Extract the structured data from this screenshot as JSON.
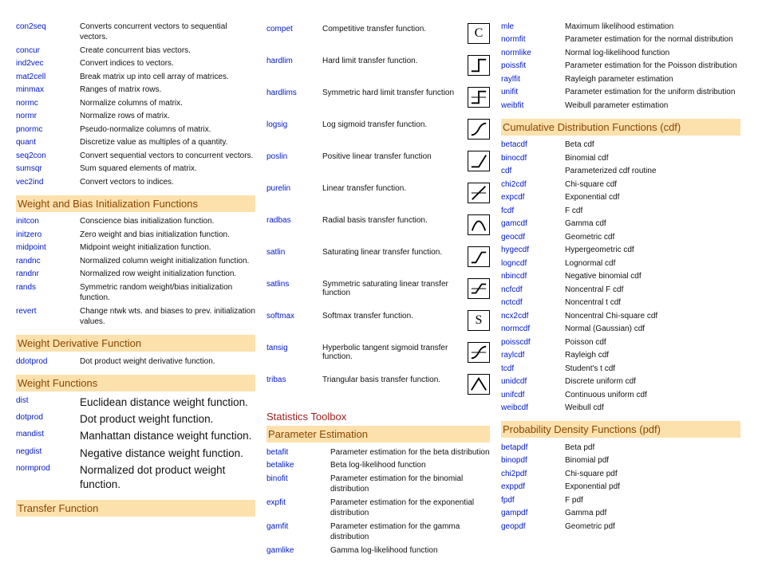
{
  "colors": {
    "link": "#0018c8",
    "section_bg": "#fce1ad",
    "section_fg": "#8b4500",
    "toolbox_fg": "#a02020",
    "text": "#111111",
    "background": "#ffffff"
  },
  "col1": {
    "top_list": [
      {
        "fn": "con2seq",
        "desc": "Converts concurrent vectors to sequential vectors."
      },
      {
        "fn": "concur",
        "desc": "Create concurrent bias vectors."
      },
      {
        "fn": "ind2vec",
        "desc": "Convert indices to vectors."
      },
      {
        "fn": "mat2cell",
        "desc": "Break matrix up into cell array of matrices."
      },
      {
        "fn": "minmax",
        "desc": "Ranges of matrix rows."
      },
      {
        "fn": "normc",
        "desc": "Normalize columns of matrix."
      },
      {
        "fn": "normr",
        "desc": "Normalize rows of matrix."
      },
      {
        "fn": "pnormc",
        "desc": "Pseudo-normalize columns of matrix."
      },
      {
        "fn": "quant",
        "desc": "Discretize value as multiples of a quantity."
      },
      {
        "fn": "seq2con",
        "desc": "Convert sequential vectors to concurrent vectors."
      },
      {
        "fn": "sumsqr",
        "desc": "Sum squared elements of matrix."
      },
      {
        "fn": "vec2ind",
        "desc": "Convert vectors to indices."
      }
    ],
    "s1_title": "Weight and Bias Initialization Functions",
    "s1_list": [
      {
        "fn": "initcon",
        "desc": "Conscience bias initialization function."
      },
      {
        "fn": "initzero",
        "desc": "Zero weight and bias initialization function."
      },
      {
        "fn": "midpoint",
        "desc": "Midpoint weight initialization function."
      },
      {
        "fn": "randnc",
        "desc": "Normalized column weight initialization function."
      },
      {
        "fn": "randnr",
        "desc": "Normalized row weight initialization function."
      },
      {
        "fn": "rands",
        "desc": "Symmetric random weight/bias initialization function."
      },
      {
        "fn": "revert",
        "desc": "Change ntwk wts. and biases to prev. initialization values."
      }
    ],
    "s2_title": "Weight Derivative Function",
    "s2_list": [
      {
        "fn": "ddotprod",
        "desc": "Dot product weight derivative function."
      }
    ],
    "s3_title": "Weight Functions",
    "s3_list": [
      {
        "fn": "dist",
        "desc": "Euclidean distance weight function."
      },
      {
        "fn": "dotprod",
        "desc": "Dot product weight function."
      },
      {
        "fn": "mandist",
        "desc": "Manhattan distance weight function."
      },
      {
        "fn": "negdist",
        "desc": "Negative distance weight function."
      },
      {
        "fn": "normprod",
        "desc": "Normalized dot product weight function."
      }
    ],
    "s4_title": "Transfer Function"
  },
  "col2": {
    "tf_list": [
      {
        "fn": "compet",
        "desc": "Competitive transfer function.",
        "glyph": "letter",
        "letter": "C"
      },
      {
        "fn": "hardlim",
        "desc": "Hard limit transfer function.",
        "glyph": "hardlim"
      },
      {
        "fn": "hardlims",
        "desc": "Symmetric hard limit transfer function",
        "glyph": "hardlims"
      },
      {
        "fn": "logsig",
        "desc": "Log sigmoid transfer function.",
        "glyph": "logsig"
      },
      {
        "fn": "poslin",
        "desc": "Positive linear transfer function",
        "glyph": "poslin"
      },
      {
        "fn": "purelin",
        "desc": "Linear transfer function.",
        "glyph": "purelin"
      },
      {
        "fn": "radbas",
        "desc": "Radial basis transfer function.",
        "glyph": "radbas"
      },
      {
        "fn": "satlin",
        "desc": "Saturating linear transfer function.",
        "glyph": "satlin"
      },
      {
        "fn": "satlins",
        "desc": "Symmetric saturating linear transfer function",
        "glyph": "satlins"
      },
      {
        "fn": "softmax",
        "desc": "Softmax transfer function.",
        "glyph": "letter",
        "letter": "S"
      },
      {
        "fn": "tansig",
        "desc": "Hyperbolic tangent sigmoid transfer function.",
        "glyph": "tansig"
      },
      {
        "fn": "tribas",
        "desc": "Triangular basis transfer function.",
        "glyph": "tribas"
      }
    ],
    "toolbox_title": "Statistics Toolbox",
    "pe_title": "Parameter Estimation",
    "pe_list": [
      {
        "fn": "betafit",
        "desc": "Parameter estimation for the beta distribution"
      },
      {
        "fn": "betalike",
        "desc": "Beta log-likelihood function"
      },
      {
        "fn": "binofit",
        "desc": "Parameter estimation for the binomial distribution"
      },
      {
        "fn": "expfit",
        "desc": "Parameter estimation for the exponential distribution"
      },
      {
        "fn": "gamfit",
        "desc": "Parameter estimation for the gamma distribution"
      },
      {
        "fn": "gamlike",
        "desc": "Gamma log-likelihood function"
      }
    ]
  },
  "col3": {
    "top_list": [
      {
        "fn": "mle",
        "desc": "Maximum likelihood estimation"
      },
      {
        "fn": "normfit",
        "desc": "Parameter estimation for the normal distribution"
      },
      {
        "fn": "normlike",
        "desc": "Normal log-likelihood function"
      },
      {
        "fn": "poissfit",
        "desc": "Parameter estimation for the Poisson distribution"
      },
      {
        "fn": "raylfit",
        "desc": "Rayleigh parameter estimation"
      },
      {
        "fn": "unifit",
        "desc": "Parameter estimation for the uniform distribution"
      },
      {
        "fn": "weibfit",
        "desc": "Weibull parameter estimation"
      }
    ],
    "cdf_title": "Cumulative Distribution Functions (cdf)",
    "cdf_list": [
      {
        "fn": "betacdf",
        "desc": "Beta cdf"
      },
      {
        "fn": "binocdf",
        "desc": "Binomial cdf"
      },
      {
        "fn": "cdf",
        "desc": "Parameterized cdf routine"
      },
      {
        "fn": "chi2cdf",
        "desc": "Chi-square cdf"
      },
      {
        "fn": "expcdf",
        "desc": "Exponential cdf"
      },
      {
        "fn": "fcdf",
        "desc": "F cdf"
      },
      {
        "fn": "gamcdf",
        "desc": "Gamma cdf"
      },
      {
        "fn": "geocdf",
        "desc": "Geometric cdf"
      },
      {
        "fn": "hygecdf",
        "desc": "Hypergeometric cdf"
      },
      {
        "fn": "logncdf",
        "desc": "Lognormal cdf"
      },
      {
        "fn": "nbincdf",
        "desc": "Negative binomial cdf"
      },
      {
        "fn": "ncfcdf",
        "desc": "Noncentral F cdf"
      },
      {
        "fn": "nctcdf",
        "desc": "Noncentral t cdf"
      },
      {
        "fn": "ncx2cdf",
        "desc": "Noncentral Chi-square cdf"
      },
      {
        "fn": "normcdf",
        "desc": "Normal (Gaussian) cdf"
      },
      {
        "fn": "poisscdf",
        "desc": "Poisson cdf"
      },
      {
        "fn": "raylcdf",
        "desc": "Rayleigh cdf"
      },
      {
        "fn": "tcdf",
        "desc": "Student's t cdf"
      },
      {
        "fn": "unidcdf",
        "desc": "Discrete uniform cdf"
      },
      {
        "fn": "unifcdf",
        "desc": "Continuous uniform cdf"
      },
      {
        "fn": "weibcdf",
        "desc": "Weibull cdf"
      }
    ],
    "pdf_title": "Probability Density Functions (pdf)",
    "pdf_list": [
      {
        "fn": "betapdf",
        "desc": "Beta pdf"
      },
      {
        "fn": "binopdf",
        "desc": "Binomial pdf"
      },
      {
        "fn": "chi2pdf",
        "desc": "Chi-square pdf"
      },
      {
        "fn": "exppdf",
        "desc": "Exponential pdf"
      },
      {
        "fn": "fpdf",
        "desc": "F pdf"
      },
      {
        "fn": "gampdf",
        "desc": "Gamma pdf"
      },
      {
        "fn": "geopdf",
        "desc": "Geometric pdf"
      }
    ]
  }
}
